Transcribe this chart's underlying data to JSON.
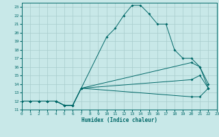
{
  "xlabel": "Humidex (Indice chaleur)",
  "xlim": [
    0,
    23
  ],
  "ylim": [
    11,
    23.5
  ],
  "xticks": [
    0,
    1,
    2,
    3,
    4,
    5,
    6,
    7,
    8,
    9,
    10,
    11,
    12,
    13,
    14,
    15,
    16,
    17,
    18,
    19,
    20,
    21,
    22,
    23
  ],
  "yticks": [
    11,
    12,
    13,
    14,
    15,
    16,
    17,
    18,
    19,
    20,
    21,
    22,
    23
  ],
  "bg_color": "#c8e8e8",
  "grid_color": "#a8cccc",
  "line_color": "#006868",
  "series": [
    {
      "x": [
        0,
        1,
        2,
        3,
        4,
        5,
        6,
        7,
        10,
        11,
        12,
        13,
        14,
        15,
        16,
        17,
        18,
        19,
        20,
        21,
        22
      ],
      "y": [
        12,
        12,
        12,
        12,
        12,
        11.5,
        11.5,
        13.5,
        19.5,
        20.5,
        22,
        23.2,
        23.2,
        22.2,
        21,
        21,
        18,
        17,
        17,
        16,
        14
      ]
    },
    {
      "x": [
        0,
        1,
        2,
        3,
        4,
        5,
        6,
        7,
        20,
        21,
        22
      ],
      "y": [
        12,
        12,
        12,
        12,
        12,
        11.5,
        11.5,
        13.5,
        16.5,
        16,
        13.5
      ]
    },
    {
      "x": [
        0,
        1,
        2,
        3,
        4,
        5,
        6,
        7,
        20,
        21,
        22
      ],
      "y": [
        12,
        12,
        12,
        12,
        12,
        11.5,
        11.5,
        13.5,
        14.5,
        15,
        13.5
      ]
    },
    {
      "x": [
        0,
        1,
        2,
        3,
        4,
        5,
        6,
        7,
        20,
        21,
        22
      ],
      "y": [
        12,
        12,
        12,
        12,
        12,
        11.5,
        11.5,
        13.5,
        12.5,
        12.5,
        13.5
      ]
    }
  ]
}
